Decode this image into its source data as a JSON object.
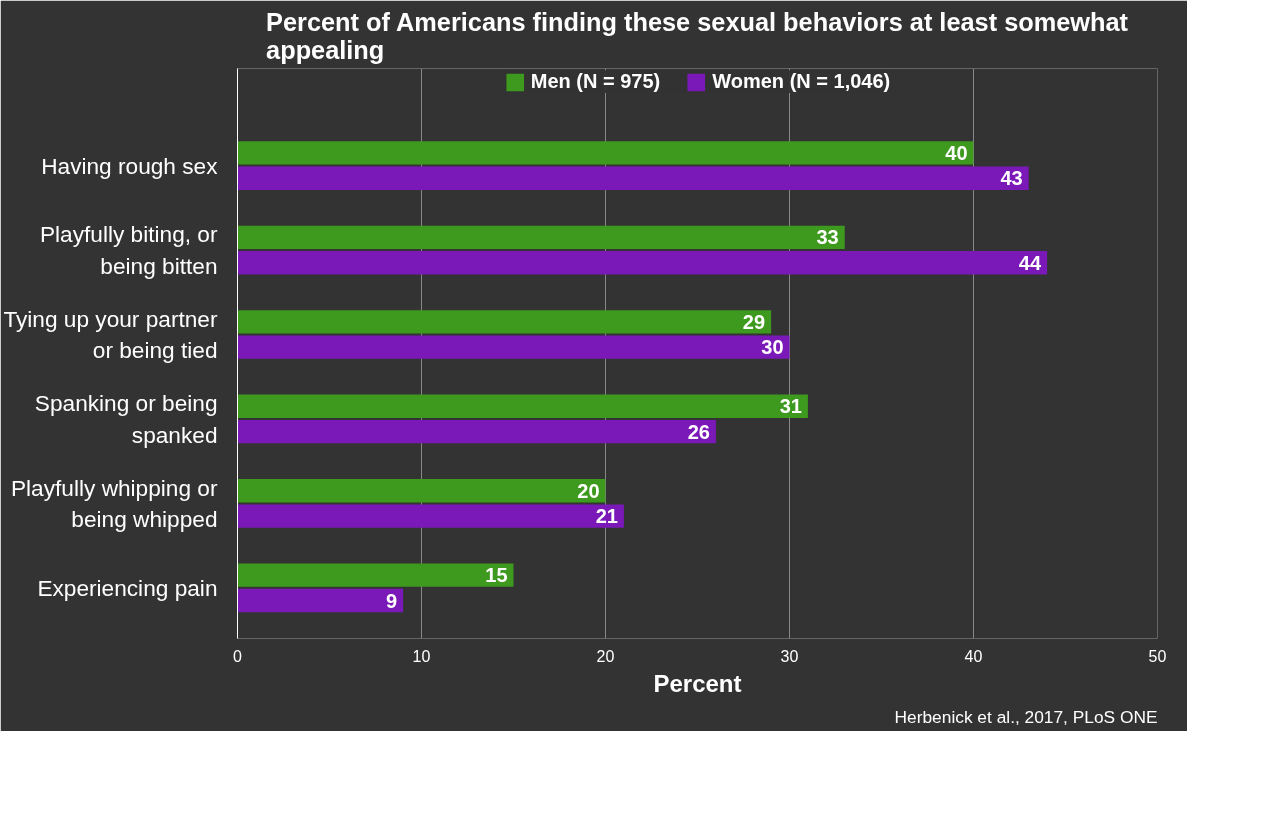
{
  "chart_data": {
    "type": "bar",
    "orientation": "horizontal",
    "title": "Percent of Americans finding these sexual behaviors at least somewhat appealing",
    "xlabel": "Percent",
    "categories": [
      "Having rough sex",
      "Playfully biting, or being bitten",
      "Tying up your partner or being tied",
      "Spanking or being spanked",
      "Playfully whipping or being whipped",
      "Experiencing pain"
    ],
    "series": [
      {
        "name": "Men (N = 975)",
        "color": "#3e9a1e",
        "values": [
          40,
          33,
          29,
          31,
          20,
          15
        ]
      },
      {
        "name": "Women (N = 1,046)",
        "color": "#7a18b8",
        "values": [
          43,
          44,
          30,
          26,
          21,
          9
        ]
      }
    ],
    "xlim": [
      0,
      50
    ],
    "xticks": [
      0,
      10,
      20,
      30,
      40,
      50
    ],
    "grid": "x",
    "legend": "top",
    "data_labels": true,
    "annotations": [
      "Herbenick et al., 2017, PLoS ONE"
    ]
  }
}
